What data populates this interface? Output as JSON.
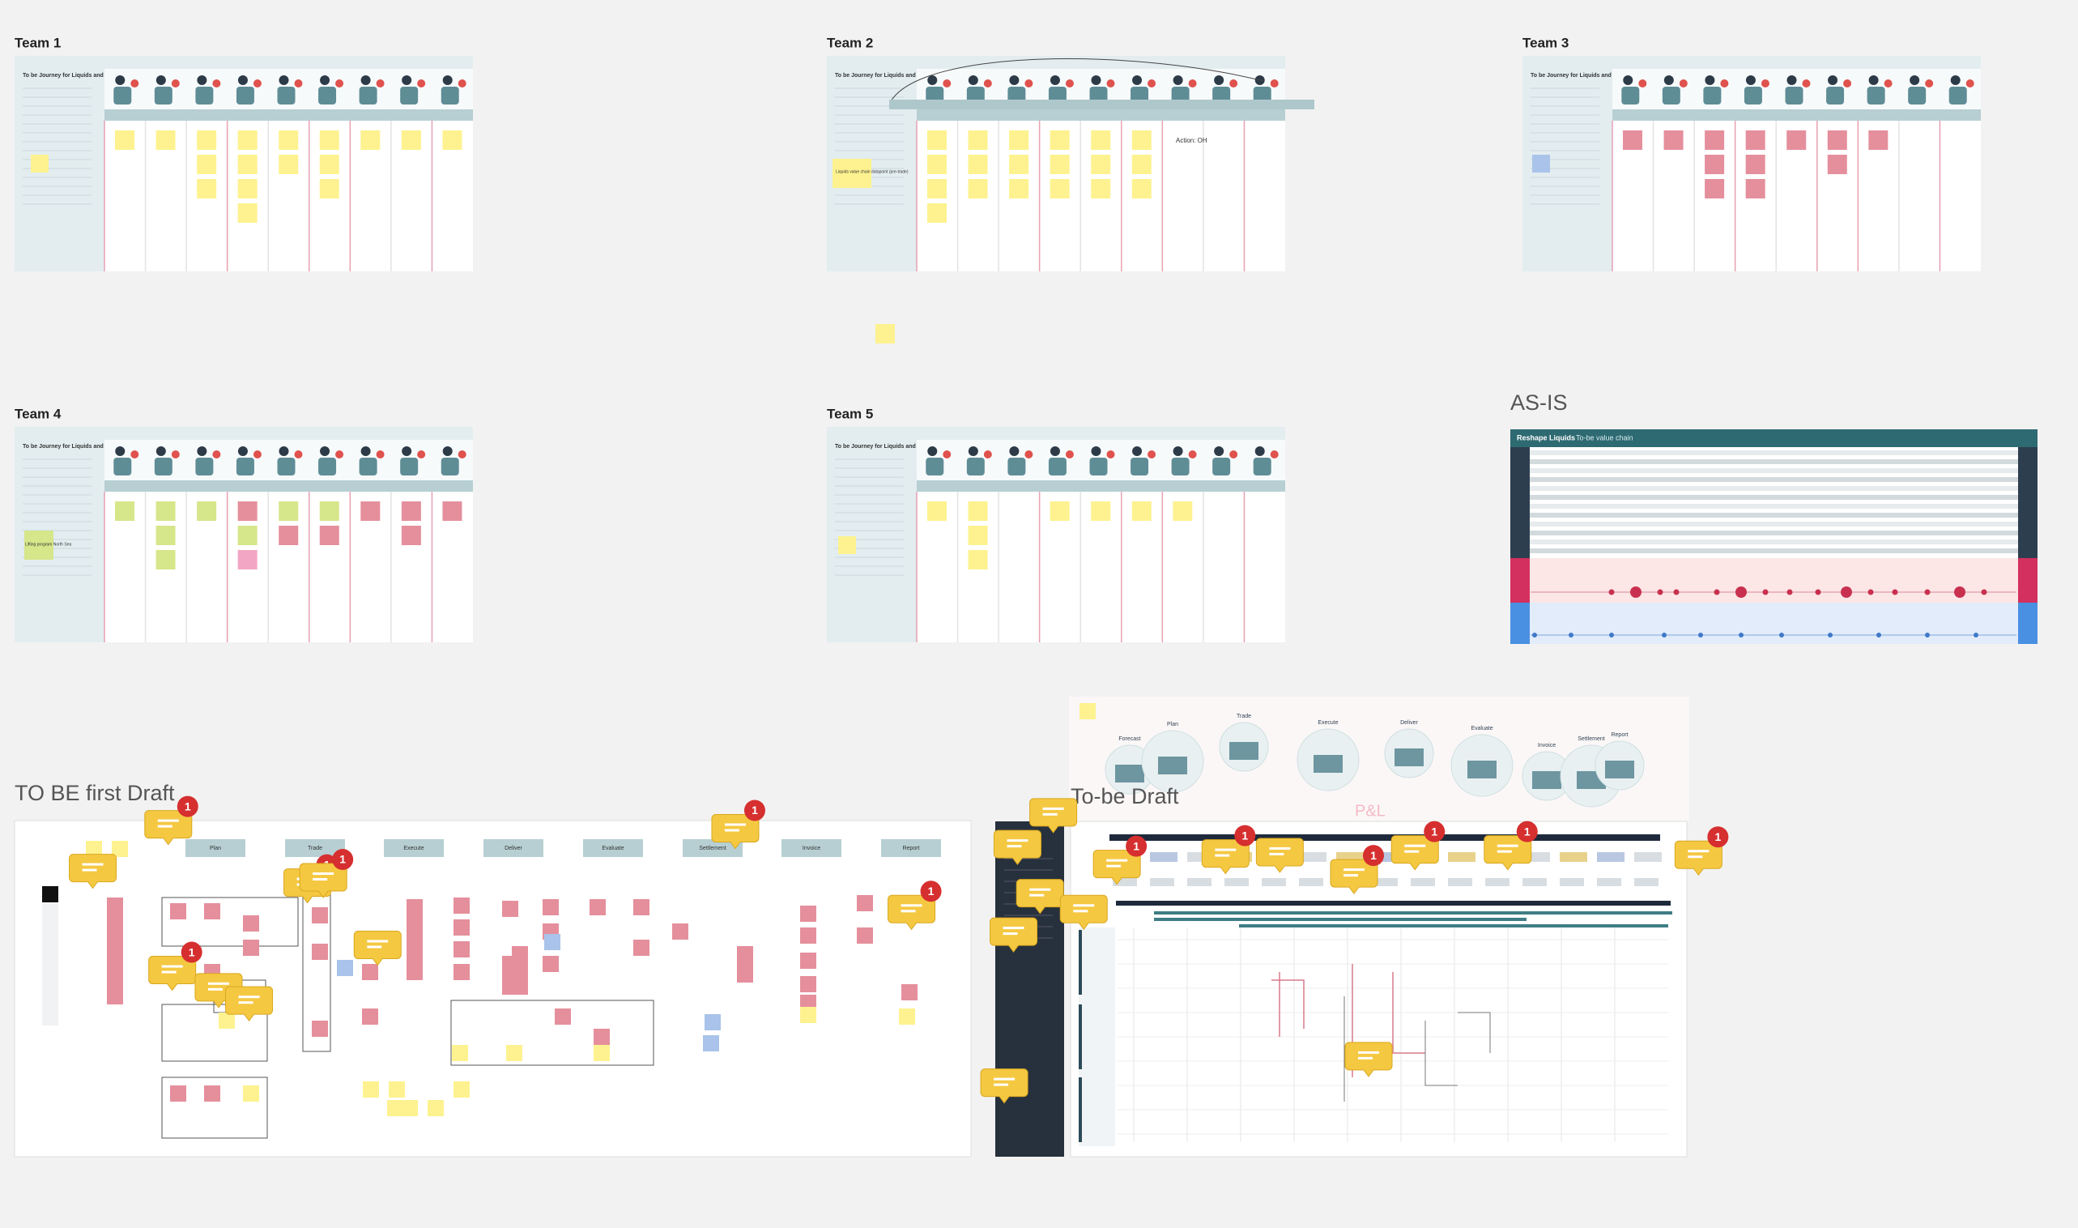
{
  "frames": [
    {
      "title": "Team 1",
      "subtitle": "To be Journey for Liquids and shipping"
    },
    {
      "title": "Team 2",
      "subtitle": "To be Journey for Liquids and shipping"
    },
    {
      "title": "Team 3",
      "subtitle": "To be Journey for Liquids and shipping"
    },
    {
      "title": "Team 4",
      "subtitle": "To be Journey for Liquids and shipping"
    },
    {
      "title": "Team 5",
      "subtitle": "To be Journey for Liquids and shipping"
    }
  ],
  "as_is": {
    "title": "AS-IS",
    "header": "Reshape Liquids",
    "subheader": "To-be value chain"
  },
  "first_draft": {
    "title": "TO BE first Draft",
    "stages": [
      "Plan",
      "Trade",
      "Execute",
      "Deliver",
      "Evaluate",
      "Settlement",
      "Invoice",
      "Report"
    ]
  },
  "draft": {
    "title": "To-be Draft",
    "stages": [
      "Forecast",
      "Plan",
      "Trade",
      "Execute",
      "Deliver",
      "Evaluate",
      "Invoice",
      "Settlement",
      "Report"
    ],
    "note": "P&L"
  },
  "sticky_notes": [
    "Liquids value chain datapoint (pre-trade)",
    "Lifting program North Sea",
    "Action: OH"
  ],
  "comment_badges": [
    1,
    1,
    1,
    1,
    1,
    1,
    1,
    1,
    1,
    1,
    1,
    1
  ]
}
